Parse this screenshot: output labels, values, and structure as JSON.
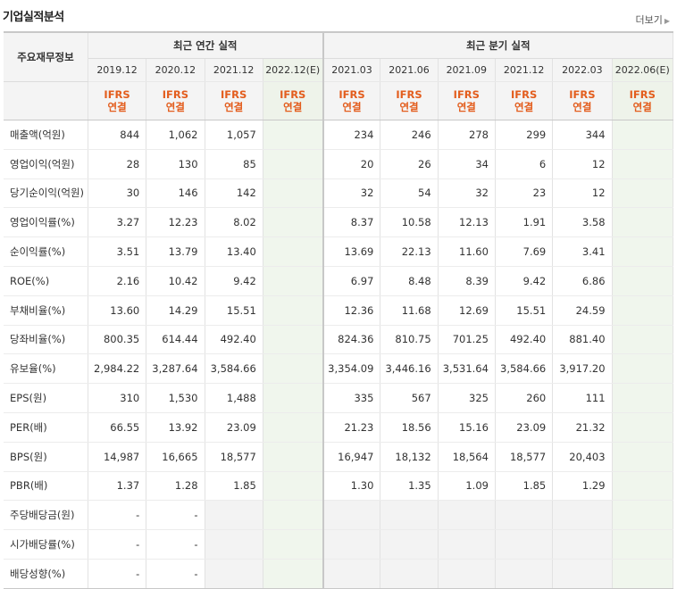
{
  "header": {
    "title": "기업실적분석",
    "more_label": "더보기"
  },
  "table": {
    "row_header_label": "주요재무정보",
    "annual_group_label": "최근 연간 실적",
    "quarter_group_label": "최근 분기 실적",
    "annual_periods": [
      "2019.12",
      "2020.12",
      "2021.12",
      "2022.12(E)"
    ],
    "quarter_periods": [
      "2021.03",
      "2021.06",
      "2021.09",
      "2021.12",
      "2022.03",
      "2022.06(E)"
    ],
    "accounting": {
      "line1": "IFRS",
      "line2": "연결"
    },
    "rows": [
      {
        "label": "매출액(억원)",
        "annual": [
          "844",
          "1,062",
          "1,057",
          ""
        ],
        "quarter": [
          "234",
          "246",
          "278",
          "299",
          "344",
          ""
        ]
      },
      {
        "label": "영업이익(억원)",
        "annual": [
          "28",
          "130",
          "85",
          ""
        ],
        "quarter": [
          "20",
          "26",
          "34",
          "6",
          "12",
          ""
        ]
      },
      {
        "label": "당기순이익(억원)",
        "annual": [
          "30",
          "146",
          "142",
          ""
        ],
        "quarter": [
          "32",
          "54",
          "32",
          "23",
          "12",
          ""
        ]
      },
      {
        "label": "영업이익률(%)",
        "annual": [
          "3.27",
          "12.23",
          "8.02",
          ""
        ],
        "quarter": [
          "8.37",
          "10.58",
          "12.13",
          "1.91",
          "3.58",
          ""
        ]
      },
      {
        "label": "순이익률(%)",
        "annual": [
          "3.51",
          "13.79",
          "13.40",
          ""
        ],
        "quarter": [
          "13.69",
          "22.13",
          "11.60",
          "7.69",
          "3.41",
          ""
        ]
      },
      {
        "label": "ROE(%)",
        "annual": [
          "2.16",
          "10.42",
          "9.42",
          ""
        ],
        "quarter": [
          "6.97",
          "8.48",
          "8.39",
          "9.42",
          "6.86",
          ""
        ]
      },
      {
        "label": "부채비율(%)",
        "annual": [
          "13.60",
          "14.29",
          "15.51",
          ""
        ],
        "quarter": [
          "12.36",
          "11.68",
          "12.69",
          "15.51",
          "24.59",
          ""
        ]
      },
      {
        "label": "당좌비율(%)",
        "annual": [
          "800.35",
          "614.44",
          "492.40",
          ""
        ],
        "quarter": [
          "824.36",
          "810.75",
          "701.25",
          "492.40",
          "881.40",
          ""
        ]
      },
      {
        "label": "유보율(%)",
        "annual": [
          "2,984.22",
          "3,287.64",
          "3,584.66",
          ""
        ],
        "quarter": [
          "3,354.09",
          "3,446.16",
          "3,531.64",
          "3,584.66",
          "3,917.20",
          ""
        ]
      },
      {
        "label": "EPS(원)",
        "annual": [
          "310",
          "1,530",
          "1,488",
          ""
        ],
        "quarter": [
          "335",
          "567",
          "325",
          "260",
          "111",
          ""
        ]
      },
      {
        "label": "PER(배)",
        "annual": [
          "66.55",
          "13.92",
          "23.09",
          ""
        ],
        "quarter": [
          "21.23",
          "18.56",
          "15.16",
          "23.09",
          "21.32",
          ""
        ]
      },
      {
        "label": "BPS(원)",
        "annual": [
          "14,987",
          "16,665",
          "18,577",
          ""
        ],
        "quarter": [
          "16,947",
          "18,132",
          "18,564",
          "18,577",
          "20,403",
          ""
        ]
      },
      {
        "label": "PBR(배)",
        "annual": [
          "1.37",
          "1.28",
          "1.85",
          ""
        ],
        "quarter": [
          "1.30",
          "1.35",
          "1.09",
          "1.85",
          "1.29",
          ""
        ]
      },
      {
        "label": "주당배당금(원)",
        "annual": [
          "-",
          "-",
          "",
          ""
        ],
        "quarter": [
          "",
          "",
          "",
          "",
          "",
          ""
        ]
      },
      {
        "label": "시가배당률(%)",
        "annual": [
          "-",
          "-",
          "",
          ""
        ],
        "quarter": [
          "",
          "",
          "",
          "",
          "",
          ""
        ]
      },
      {
        "label": "배당성향(%)",
        "annual": [
          "-",
          "-",
          "",
          ""
        ],
        "quarter": [
          "",
          "",
          "",
          "",
          "",
          ""
        ]
      }
    ]
  }
}
